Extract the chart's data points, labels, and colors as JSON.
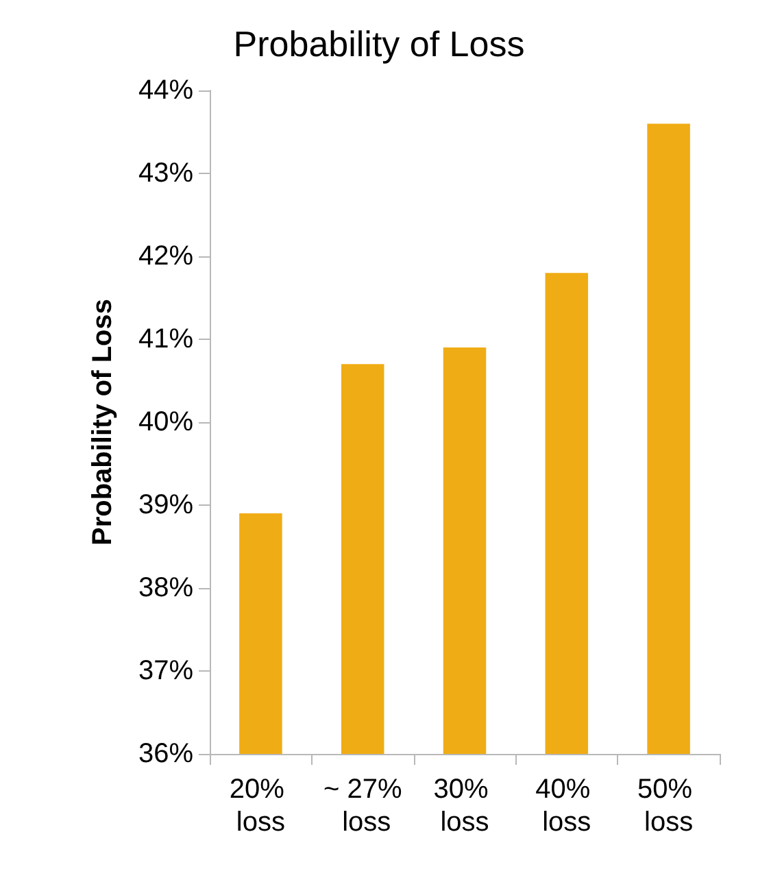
{
  "chart_data": {
    "type": "bar",
    "title": "Probability of Loss",
    "ylabel": "Probability of Loss",
    "categories": [
      "20% loss",
      "~ 27% loss",
      "30% loss",
      "40% loss",
      "50% loss"
    ],
    "values": [
      38.9,
      40.7,
      40.9,
      41.8,
      43.6
    ],
    "color": "#f0ac14",
    "ylim": [
      36,
      44
    ],
    "yticks": [
      {
        "value": 36,
        "label": "36%"
      },
      {
        "value": 37,
        "label": "37%"
      },
      {
        "value": 38,
        "label": "38%"
      },
      {
        "value": 39,
        "label": "39%"
      },
      {
        "value": 40,
        "label": "40%"
      },
      {
        "value": 41,
        "label": "41%"
      },
      {
        "value": 42,
        "label": "42%"
      },
      {
        "value": 43,
        "label": "43%"
      },
      {
        "value": 44,
        "label": "44%"
      }
    ],
    "grid": false
  }
}
